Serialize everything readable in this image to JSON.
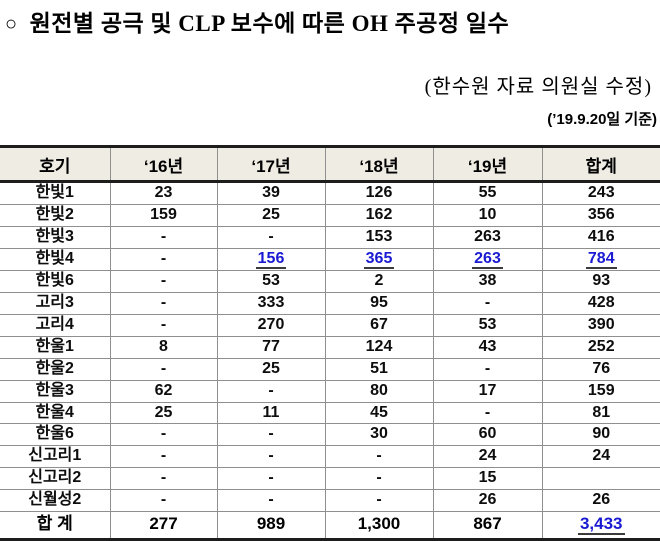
{
  "header": {
    "bullet": "○",
    "title": "원전별 공극 및 CLP 보수에 따른 OH 주공정 일수",
    "subtitle": "(한수원 자료 의원실 수정)",
    "date_note": "(’19.9.20일 기준)"
  },
  "table": {
    "columns": [
      "호기",
      "‘16년",
      "‘17년",
      "‘18년",
      "‘19년",
      "합계"
    ],
    "rows": [
      {
        "label": "한빛1",
        "values": [
          "23",
          "39",
          "126",
          "55",
          "243"
        ],
        "blue": []
      },
      {
        "label": "한빛2",
        "values": [
          "159",
          "25",
          "162",
          "10",
          "356"
        ],
        "blue": []
      },
      {
        "label": "한빛3",
        "values": [
          "-",
          "-",
          "153",
          "263",
          "416"
        ],
        "blue": []
      },
      {
        "label": "한빛4",
        "values": [
          "-",
          "156",
          "365",
          "263",
          "784"
        ],
        "blue": [
          1,
          2,
          3,
          4
        ]
      },
      {
        "label": "한빛6",
        "values": [
          "-",
          "53",
          "2",
          "38",
          "93"
        ],
        "blue": []
      },
      {
        "label": "고리3",
        "values": [
          "-",
          "333",
          "95",
          "-",
          "428"
        ],
        "blue": []
      },
      {
        "label": "고리4",
        "values": [
          "-",
          "270",
          "67",
          "53",
          "390"
        ],
        "blue": []
      },
      {
        "label": "한울1",
        "values": [
          "8",
          "77",
          "124",
          "43",
          "252"
        ],
        "blue": []
      },
      {
        "label": "한울2",
        "values": [
          "-",
          "25",
          "51",
          "-",
          "76"
        ],
        "blue": []
      },
      {
        "label": "한울3",
        "values": [
          "62",
          "-",
          "80",
          "17",
          "159"
        ],
        "blue": []
      },
      {
        "label": "한울4",
        "values": [
          "25",
          "11",
          "45",
          "-",
          "81"
        ],
        "blue": []
      },
      {
        "label": "한울6",
        "values": [
          "-",
          "-",
          "30",
          "60",
          "90"
        ],
        "blue": []
      },
      {
        "label": "신고리1",
        "values": [
          "-",
          "-",
          "-",
          "24",
          "24"
        ],
        "blue": []
      },
      {
        "label": "신고리2",
        "values": [
          "-",
          "-",
          "-",
          "15",
          ""
        ],
        "blue": []
      },
      {
        "label": "신월성2",
        "values": [
          "-",
          "-",
          "-",
          "26",
          "26"
        ],
        "blue": []
      }
    ],
    "total_row": {
      "label": "합 계",
      "values": [
        "277",
        "989",
        "1,300",
        "867",
        "3,433"
      ],
      "blue": [
        4
      ]
    },
    "colors": {
      "highlight_text": "#1a1ad2",
      "header_background": "#efede3",
      "thick_border": "#1d1d1d",
      "thin_border": "#8f8f8f"
    }
  }
}
